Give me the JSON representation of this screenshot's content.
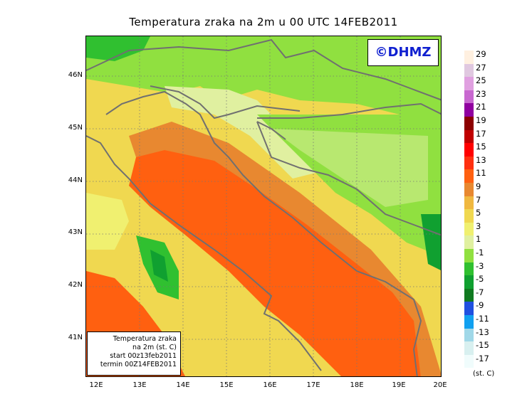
{
  "title": "Temperatura zraka na 2m u 00 UTC 14FEB2011",
  "credit": "©DHMZ",
  "infobox": {
    "line1": "Temperatura zraka",
    "line2": "na 2m (st. C)",
    "line3": "start 00z13feb2011",
    "line4": "termin 00Z14FEB2011"
  },
  "lat_ticks": [
    "46N",
    "45N",
    "44N",
    "43N",
    "42N",
    "41N"
  ],
  "lon_ticks": [
    "12E",
    "13E",
    "14E",
    "15E",
    "16E",
    "17E",
    "18E",
    "19E",
    "20E"
  ],
  "legend": {
    "units": "(st. C)",
    "labels": [
      "29",
      "27",
      "25",
      "23",
      "21",
      "19",
      "17",
      "15",
      "13",
      "11",
      "9",
      "7",
      "5",
      "3",
      "1",
      "-1",
      "-3",
      "-5",
      "-7",
      "-9",
      "-11",
      "-13",
      "-15",
      "-17"
    ],
    "colors": [
      "#fff0e0",
      "#e0c8e0",
      "#e0a0e0",
      "#c868d0",
      "#9000a0",
      "#8c0000",
      "#c00000",
      "#ff0000",
      "#ff3010",
      "#ff6010",
      "#e88830",
      "#f0b840",
      "#f0d850",
      "#f0f070",
      "#e0f0a0",
      "#90e040",
      "#30c030",
      "#10a030",
      "#107a20",
      "#2050e0",
      "#10a0f0",
      "#a0d8e8",
      "#d8f0f0",
      "#f0fcfc"
    ]
  }
}
